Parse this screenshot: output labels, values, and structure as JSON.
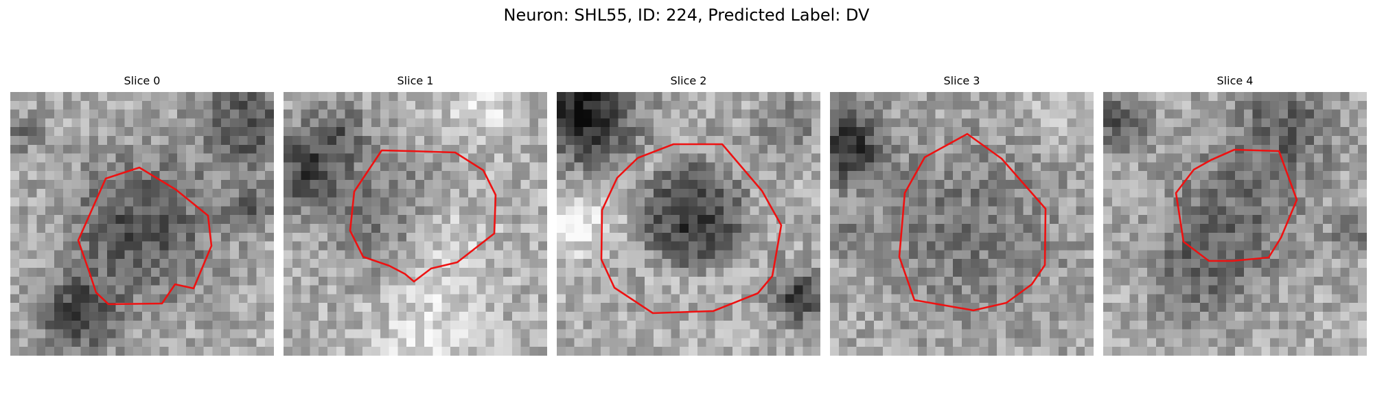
{
  "figure": {
    "title": "Neuron: SHL55, ID: 224, Predicted Label: DV"
  },
  "contour_color": "#ee1111",
  "colormap": "grayscale",
  "slices": [
    {
      "label": "Slice 0"
    },
    {
      "label": "Slice 1"
    },
    {
      "label": "Slice 2"
    },
    {
      "label": "Slice 3"
    },
    {
      "label": "Slice 4"
    }
  ]
}
